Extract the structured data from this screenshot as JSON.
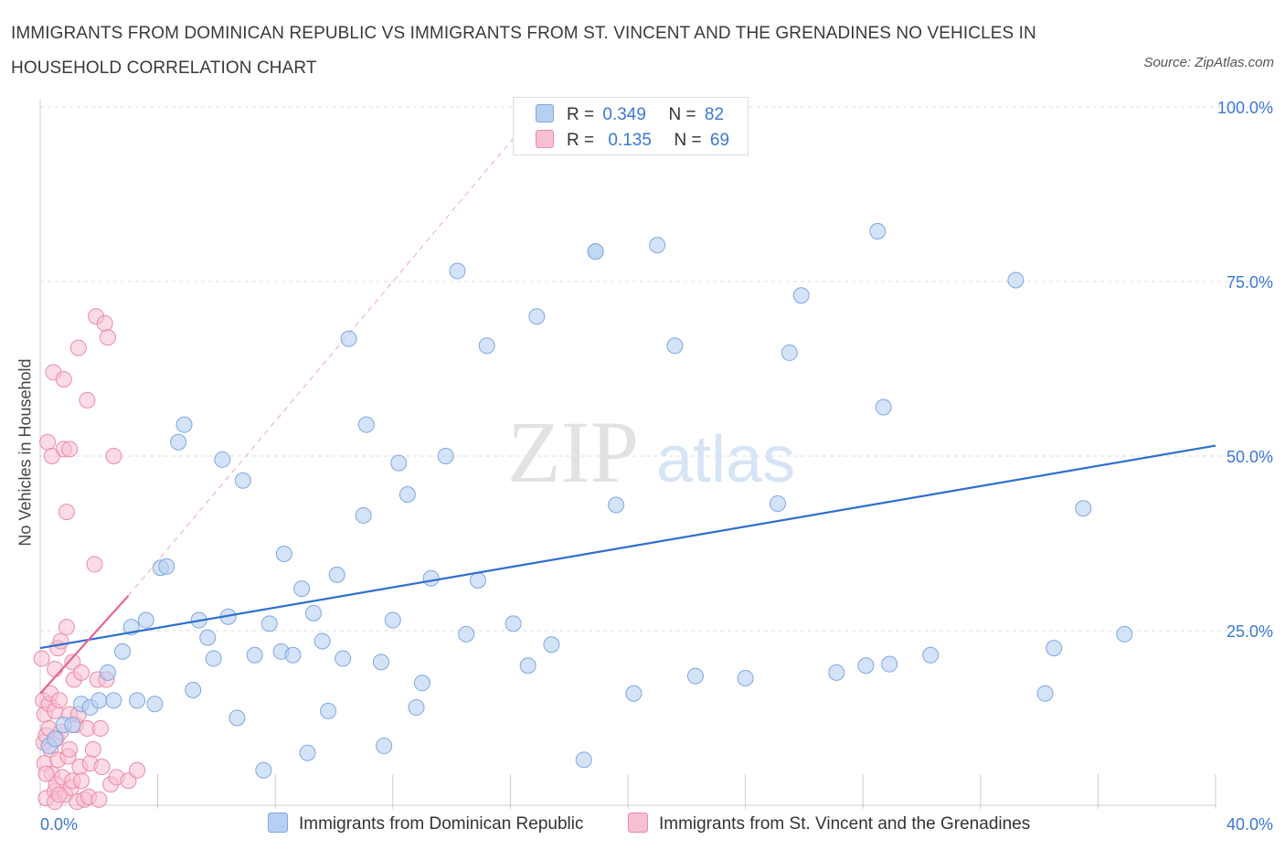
{
  "title": "IMMIGRANTS FROM DOMINICAN REPUBLIC VS IMMIGRANTS FROM ST. VINCENT AND THE GRENADINES NO VEHICLES IN HOUSEHOLD CORRELATION CHART",
  "source": "Source: ZipAtlas.com",
  "watermark": {
    "zip": "ZIP",
    "atlas": "atlas"
  },
  "colors": {
    "blue_fill": "#b7d0f2",
    "blue_stroke": "#7fa8e0",
    "blue_line": "#2f6fd0",
    "pink_fill": "#f7c0d0",
    "pink_stroke": "#ec8aa8",
    "pink_line": "#e8648e",
    "tick_color": "#3b78d4"
  },
  "legend": {
    "blue": {
      "r_label": "R =",
      "r_value": "0.349",
      "n_label": "N =",
      "n_value": "82"
    },
    "pink": {
      "r_label": "R =",
      "r_value": "0.135",
      "n_label": "N =",
      "n_value": "69"
    }
  },
  "series_legend": {
    "blue": "Immigrants from Dominican Republic",
    "pink": "Immigrants from St. Vincent and the Grenadines"
  },
  "chart_data": {
    "type": "scatter",
    "title": "IMMIGRANTS FROM DOMINICAN REPUBLIC VS IMMIGRANTS FROM ST. VINCENT AND THE GRENADINES NO VEHICLES IN HOUSEHOLD CORRELATION CHART",
    "xlabel": "",
    "ylabel": "No Vehicles in Household",
    "xlim": [
      0,
      40
    ],
    "ylim": [
      0,
      100
    ],
    "x_tick_labels": [
      {
        "value": 0,
        "label": "0.0%"
      },
      {
        "value": 40,
        "label": "40.0%"
      }
    ],
    "y_tick_labels": [
      {
        "value": 25,
        "label": "25.0%"
      },
      {
        "value": 50,
        "label": "50.0%"
      },
      {
        "value": 75,
        "label": "75.0%"
      },
      {
        "value": 100,
        "label": "100.0%"
      }
    ],
    "series": [
      {
        "name": "Immigrants from Dominican Republic",
        "color": "#b7d0f2",
        "trend": {
          "x": [
            0,
            40
          ],
          "y": [
            22.5,
            51.5
          ]
        },
        "points": [
          [
            0.3,
            8.5
          ],
          [
            0.5,
            9.5
          ],
          [
            0.8,
            11.5
          ],
          [
            1.1,
            11.5
          ],
          [
            1.4,
            14.5
          ],
          [
            1.7,
            14
          ],
          [
            2,
            15
          ],
          [
            2.3,
            19
          ],
          [
            2.5,
            15
          ],
          [
            2.8,
            22
          ],
          [
            3.1,
            25.5
          ],
          [
            3.3,
            15
          ],
          [
            3.6,
            26.5
          ],
          [
            3.9,
            14.5
          ],
          [
            4.1,
            34
          ],
          [
            4.3,
            34.2
          ],
          [
            4.7,
            52
          ],
          [
            4.9,
            54.5
          ],
          [
            5.2,
            16.5
          ],
          [
            5.4,
            26.5
          ],
          [
            5.7,
            24
          ],
          [
            5.9,
            21
          ],
          [
            6.2,
            49.5
          ],
          [
            6.4,
            27
          ],
          [
            6.7,
            12.5
          ],
          [
            6.9,
            46.5
          ],
          [
            7.3,
            21.5
          ],
          [
            7.6,
            5
          ],
          [
            7.8,
            26
          ],
          [
            8.2,
            22
          ],
          [
            8.3,
            36
          ],
          [
            8.6,
            21.5
          ],
          [
            8.9,
            31
          ],
          [
            9.1,
            7.5
          ],
          [
            9.3,
            27.5
          ],
          [
            9.6,
            23.5
          ],
          [
            9.8,
            13.5
          ],
          [
            10.1,
            33
          ],
          [
            10.3,
            21
          ],
          [
            10.5,
            66.8
          ],
          [
            11,
            41.5
          ],
          [
            11.1,
            54.5
          ],
          [
            11.6,
            20.5
          ],
          [
            11.7,
            8.5
          ],
          [
            12,
            26.5
          ],
          [
            12.2,
            49
          ],
          [
            12.5,
            44.5
          ],
          [
            12.8,
            14
          ],
          [
            13,
            17.5
          ],
          [
            13.3,
            32.5
          ],
          [
            13.8,
            50
          ],
          [
            14.2,
            76.5
          ],
          [
            14.5,
            24.5
          ],
          [
            14.9,
            32.2
          ],
          [
            15.2,
            65.8
          ],
          [
            16.1,
            26
          ],
          [
            16.6,
            20
          ],
          [
            16.9,
            70
          ],
          [
            17.4,
            23
          ],
          [
            18.5,
            6.5
          ],
          [
            18.9,
            79.3
          ],
          [
            19.6,
            43
          ],
          [
            20.2,
            16
          ],
          [
            21,
            80.2
          ],
          [
            21.6,
            65.8
          ],
          [
            22.3,
            18.5
          ],
          [
            24,
            18.2
          ],
          [
            25.1,
            43.2
          ],
          [
            25.5,
            64.8
          ],
          [
            25.9,
            73
          ],
          [
            27.1,
            19
          ],
          [
            28.1,
            20
          ],
          [
            28.5,
            82.2
          ],
          [
            28.7,
            57
          ],
          [
            28.9,
            20.2
          ],
          [
            30.3,
            21.5
          ],
          [
            33.2,
            75.2
          ],
          [
            34.2,
            16
          ],
          [
            34.5,
            22.5
          ],
          [
            35.5,
            42.5
          ],
          [
            36.9,
            24.5
          ],
          [
            18.9,
            79.3
          ]
        ]
      },
      {
        "name": "Immigrants from St. Vincent and the Grenadines",
        "color": "#f7c0d0",
        "trend": {
          "x": [
            0,
            3.0
          ],
          "y": [
            16,
            30
          ]
        },
        "trend_extension": {
          "x": [
            3.0,
            17.0
          ],
          "y": [
            30,
            100
          ]
        },
        "points": [
          [
            0.05,
            21
          ],
          [
            0.1,
            15
          ],
          [
            0.12,
            9
          ],
          [
            0.15,
            13
          ],
          [
            0.15,
            6
          ],
          [
            0.2,
            10
          ],
          [
            0.2,
            1
          ],
          [
            0.25,
            52
          ],
          [
            0.3,
            14.5
          ],
          [
            0.3,
            11
          ],
          [
            0.35,
            16
          ],
          [
            0.35,
            8
          ],
          [
            0.4,
            50
          ],
          [
            0.4,
            4.5
          ],
          [
            0.45,
            62
          ],
          [
            0.5,
            19.5
          ],
          [
            0.5,
            13.5
          ],
          [
            0.5,
            2
          ],
          [
            0.55,
            9.5
          ],
          [
            0.55,
            3
          ],
          [
            0.6,
            22.5
          ],
          [
            0.6,
            6.5
          ],
          [
            0.65,
            15
          ],
          [
            0.7,
            10.5
          ],
          [
            0.7,
            23.5
          ],
          [
            0.75,
            4
          ],
          [
            0.8,
            61
          ],
          [
            0.8,
            51
          ],
          [
            0.85,
            1.5
          ],
          [
            0.9,
            42
          ],
          [
            0.9,
            25.5
          ],
          [
            0.95,
            7
          ],
          [
            1.0,
            51
          ],
          [
            1.0,
            13
          ],
          [
            1.0,
            8
          ],
          [
            1.05,
            2.5
          ],
          [
            1.1,
            20.5
          ],
          [
            1.1,
            3.5
          ],
          [
            1.15,
            18
          ],
          [
            1.2,
            11.5
          ],
          [
            1.25,
            0.5
          ],
          [
            1.3,
            65.5
          ],
          [
            1.3,
            13
          ],
          [
            1.35,
            5.5
          ],
          [
            1.4,
            19
          ],
          [
            1.4,
            3.5
          ],
          [
            1.5,
            0.8
          ],
          [
            1.6,
            11
          ],
          [
            1.6,
            58
          ],
          [
            1.65,
            1.2
          ],
          [
            1.7,
            6
          ],
          [
            1.8,
            8
          ],
          [
            1.85,
            34.5
          ],
          [
            1.9,
            70
          ],
          [
            1.95,
            18
          ],
          [
            2.0,
            0.8
          ],
          [
            2.05,
            11
          ],
          [
            2.1,
            5.5
          ],
          [
            2.2,
            69
          ],
          [
            2.25,
            18
          ],
          [
            2.3,
            67
          ],
          [
            2.4,
            3
          ],
          [
            2.5,
            50
          ],
          [
            2.6,
            4
          ],
          [
            3.0,
            3.5
          ],
          [
            3.3,
            5
          ],
          [
            0.5,
            0.5
          ],
          [
            0.65,
            1.5
          ],
          [
            0.2,
            4.5
          ]
        ]
      }
    ]
  }
}
